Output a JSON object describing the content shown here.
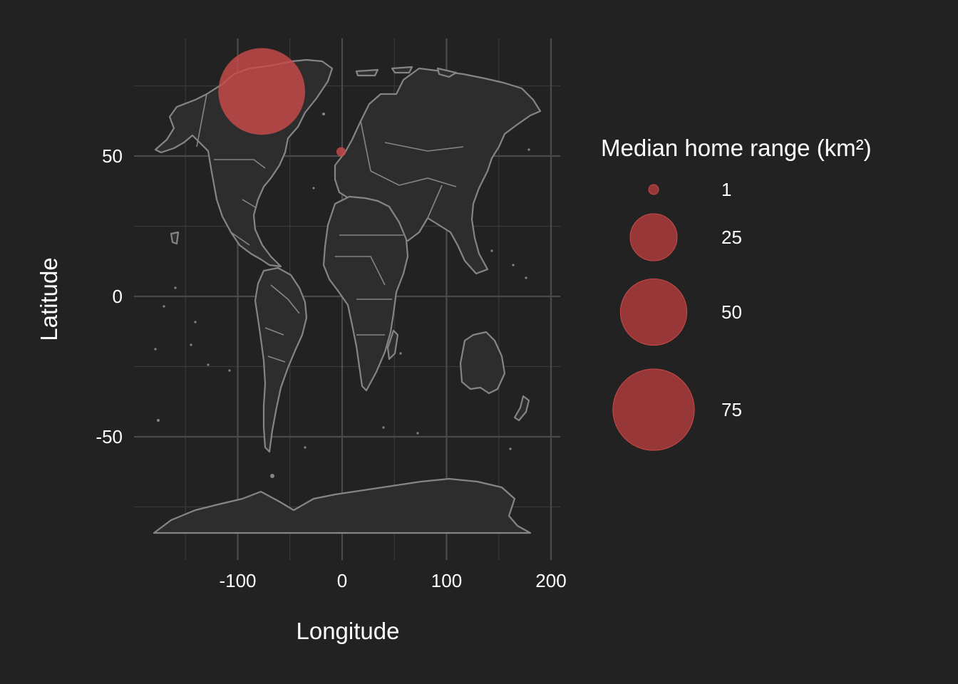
{
  "chart_data": {
    "type": "scatter",
    "subtype": "bubble-map",
    "xlabel": "Longitude",
    "ylabel": "Latitude",
    "xlim": [
      -185,
      210
    ],
    "ylim": [
      -93,
      92
    ],
    "x_major_ticks": [
      -100,
      0,
      100,
      200
    ],
    "x_minor_ticks": [
      -150,
      -50,
      50,
      150
    ],
    "y_major_ticks": [
      -50,
      0,
      50
    ],
    "y_minor_ticks": [
      -75,
      -25,
      25,
      75
    ],
    "x_tick_labels": [
      "-100",
      "0",
      "100",
      "200"
    ],
    "y_tick_labels": [
      "-50",
      "0",
      "50"
    ],
    "grid": true,
    "basemap": "world country outlines",
    "colors": {
      "background": "#222222",
      "land_fill": "#2d2d2d",
      "land_outline": "#858585",
      "bubble": "#c94a4a",
      "legend_bubble": "#a33a3a"
    },
    "points": [
      {
        "lon": -77,
        "lat": 73,
        "home_range_km2": 85
      },
      {
        "lon": -1,
        "lat": 51.5,
        "home_range_km2": 1
      }
    ],
    "legend": {
      "title": "Median home range (km²)",
      "placement": "right",
      "entries": [
        {
          "label": "1",
          "value": 1
        },
        {
          "label": "25",
          "value": 25
        },
        {
          "label": "50",
          "value": 50
        },
        {
          "label": "75",
          "value": 75
        }
      ]
    }
  }
}
